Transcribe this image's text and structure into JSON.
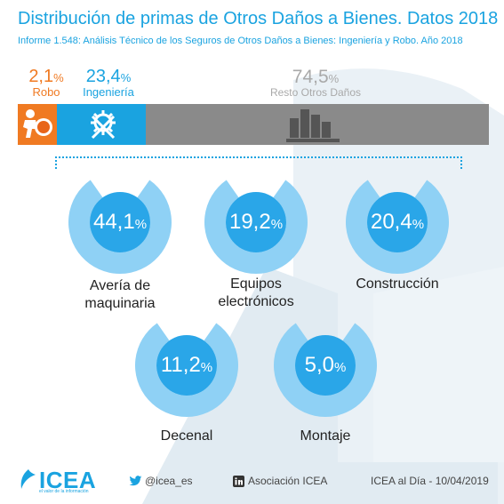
{
  "title": "Distribución de primas de Otros Daños a Bienes. Datos 2018",
  "subtitle": "Informe 1.548: Análisis Técnico de los Seguros de Otros Daños a Bienes: Ingeniería y Robo. Año 2018",
  "colors": {
    "accent": "#1aa3e0",
    "robo": "#f07a22",
    "resto": "#8a8a8a",
    "donut_light": "#8fd1f5",
    "donut_dark": "#2aa6e8"
  },
  "chart_data": [
    {
      "type": "bar",
      "orientation": "horizontal-stacked",
      "categories": [
        "Robo",
        "Ingeniería",
        "Resto Otros Daños"
      ],
      "values": [
        2.1,
        23.4,
        74.5
      ],
      "labels": [
        "2,1",
        "23,4",
        "74,5"
      ],
      "unit": "%"
    },
    {
      "type": "pie",
      "categories": [
        "Avería de maquinaria",
        "Equipos electrónicos",
        "Construcción",
        "Decenal",
        "Montaje"
      ],
      "values": [
        44.1,
        19.2,
        20.4,
        11.2,
        5.0
      ],
      "labels": [
        "44,1",
        "19,2",
        "20,4",
        "11,2",
        "5,0"
      ],
      "unit": "%"
    }
  ],
  "segments": [
    {
      "value_text": "2,1",
      "unit": "%",
      "name": "Robo"
    },
    {
      "value_text": "23,4",
      "unit": "%",
      "name": "Ingeniería"
    },
    {
      "value_text": "74,5",
      "unit": "%",
      "name": "Resto Otros Daños"
    }
  ],
  "donuts": [
    {
      "value_text": "44,1",
      "unit": "%",
      "name_line1": "Avería de",
      "name_line2": "maquinaria"
    },
    {
      "value_text": "19,2",
      "unit": "%",
      "name_line1": "Equipos",
      "name_line2": "electrónicos"
    },
    {
      "value_text": "20,4",
      "unit": "%",
      "name_line1": "Construcción",
      "name_line2": ""
    },
    {
      "value_text": "11,2",
      "unit": "%",
      "name_line1": "Decenal",
      "name_line2": ""
    },
    {
      "value_text": "5,0",
      "unit": "%",
      "name_line1": "Montaje",
      "name_line2": ""
    }
  ],
  "footer": {
    "logo_text": "ICEA",
    "logo_tagline": "el valor de la información",
    "twitter": "@icea_es",
    "linkedin": "Asociación ICEA",
    "source": "ICEA al Día - 10/04/2019"
  },
  "icons": [
    "thief-icon",
    "gear-tools-icon",
    "buildings-icon",
    "twitter-icon",
    "linkedin-icon",
    "icea-logo-icon"
  ]
}
